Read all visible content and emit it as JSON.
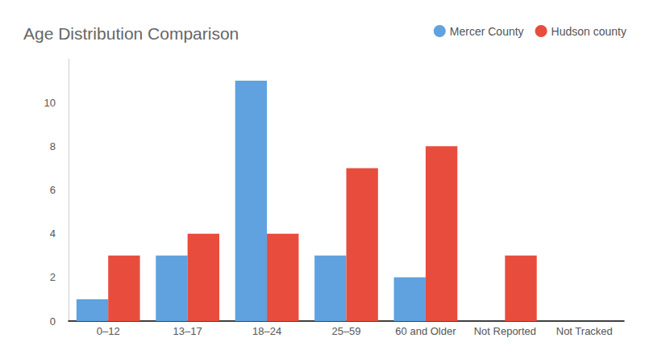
{
  "chart_data": {
    "type": "bar",
    "title": "Age Distribution Comparison",
    "categories": [
      "0–12",
      "13–17",
      "18–24",
      "25–59",
      "60 and Older",
      "Not Reported",
      "Not Tracked"
    ],
    "series": [
      {
        "name": "Mercer County",
        "color": "#5fa2df",
        "values": [
          1,
          3,
          11,
          3,
          2,
          0,
          0
        ]
      },
      {
        "name": "Hudson county",
        "color": "#e84c3d",
        "values": [
          3,
          4,
          4,
          7,
          8,
          3,
          0
        ]
      }
    ],
    "ylim": [
      0,
      12
    ],
    "yticks": [
      0,
      2,
      4,
      6,
      8,
      10
    ],
    "grid": false,
    "legend": "top-right"
  }
}
